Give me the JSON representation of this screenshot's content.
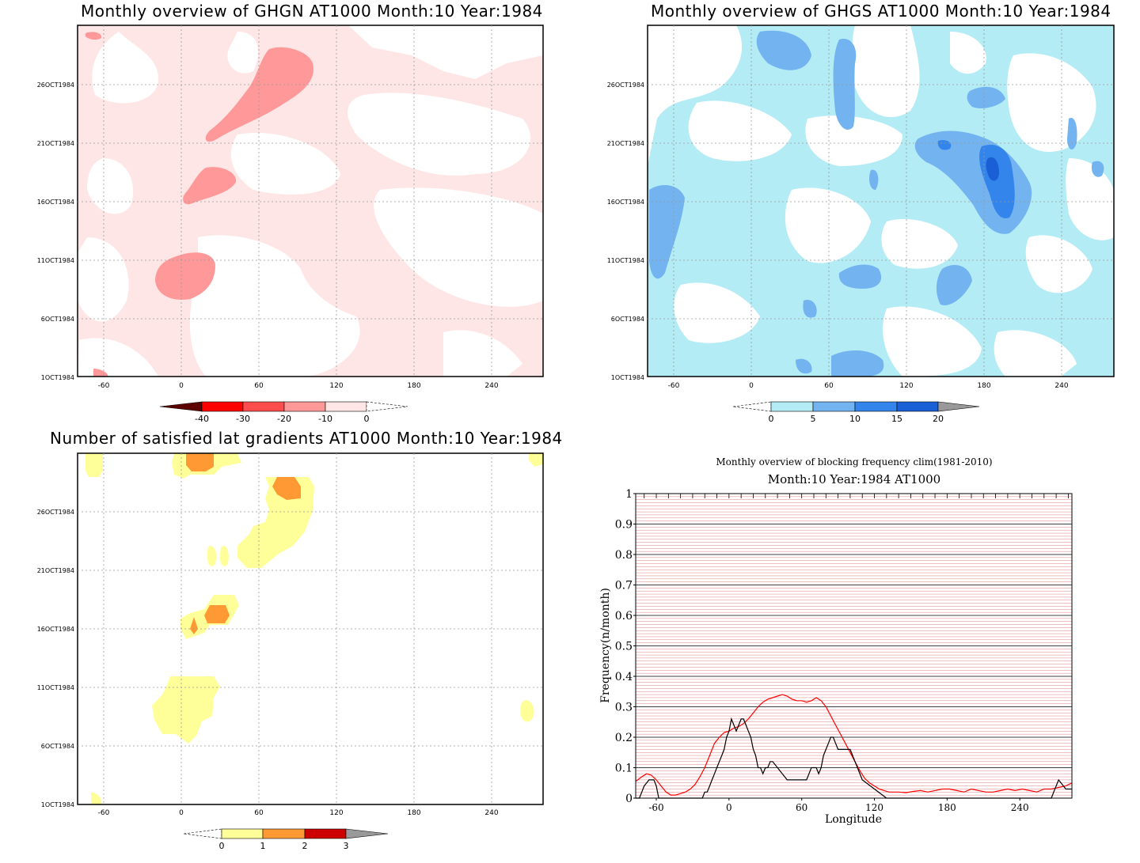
{
  "panels": {
    "ghgn": {
      "title": "Monthly overview of GHGN AT1000 Month:10 Year:1984",
      "colorbar": {
        "labels": [
          "-40",
          "-30",
          "-20",
          "-10",
          "0"
        ],
        "colors": [
          "#5c0000",
          "#ff0000",
          "#ff4d4d",
          "#ff9999",
          "#ffe6e6"
        ]
      }
    },
    "ghgs": {
      "title": "Monthly overview of GHGS AT1000 Month:10 Year:1984",
      "colorbar": {
        "labels": [
          "0",
          "5",
          "10",
          "15",
          "20"
        ],
        "colors": [
          "#b3ecf5",
          "#73b3f0",
          "#3385eb",
          "#1a5fd6",
          "#999999"
        ]
      }
    },
    "gradients": {
      "title": "Number of satisfied lat gradients AT1000 Month:10 Year:1984",
      "colorbar": {
        "labels": [
          "0",
          "1",
          "2",
          "3"
        ],
        "colors": [
          "#ffff99",
          "#ff9933",
          "#cc0000",
          "#999999"
        ]
      }
    }
  },
  "map_axes": {
    "x_ticks": [
      "-60",
      "0",
      "60",
      "120",
      "180",
      "240"
    ],
    "y_ticks": [
      "1OCT1984",
      "6OCT1984",
      "11OCT1984",
      "16OCT1984",
      "21OCT1984",
      "26OCT1984"
    ]
  },
  "chart_data": [
    {
      "type": "heatmap",
      "title": "Monthly overview of GHGN AT1000 Month:10 Year:1984",
      "x_ticks": [
        -60,
        0,
        60,
        120,
        180,
        240
      ],
      "y_ticks": [
        "1OCT1984",
        "6OCT1984",
        "11OCT1984",
        "16OCT1984",
        "21OCT1984",
        "26OCT1984"
      ],
      "color_levels": [
        -40,
        -30,
        -20,
        -10,
        0
      ],
      "xlim": [
        -77,
        283
      ]
    },
    {
      "type": "heatmap",
      "title": "Monthly overview of GHGS AT1000 Month:10 Year:1984",
      "x_ticks": [
        -60,
        0,
        60,
        120,
        180,
        240
      ],
      "y_ticks": [
        "1OCT1984",
        "6OCT1984",
        "11OCT1984",
        "16OCT1984",
        "21OCT1984",
        "26OCT1984"
      ],
      "color_levels": [
        0,
        5,
        10,
        15,
        20
      ],
      "xlim": [
        -77,
        283
      ]
    },
    {
      "type": "heatmap",
      "title": "Number of satisfied lat gradients AT1000 Month:10 Year:1984",
      "x_ticks": [
        -60,
        0,
        60,
        120,
        180,
        240
      ],
      "y_ticks": [
        "1OCT1984",
        "6OCT1984",
        "11OCT1984",
        "16OCT1984",
        "21OCT1984",
        "26OCT1984"
      ],
      "color_levels": [
        0,
        1,
        2,
        3
      ],
      "xlim": [
        -77,
        283
      ]
    },
    {
      "type": "line",
      "title": "Monthly overview of blocking frequency clim(1981-2010)",
      "subtitle": "Month:10 Year:1984  AT1000",
      "xlabel": "Longitude",
      "ylabel": "Frequency(n/month)",
      "xlim": [
        -77,
        283
      ],
      "ylim": [
        0,
        1
      ],
      "x_ticks": [
        -60,
        0,
        60,
        120,
        180,
        240
      ],
      "y_ticks": [
        "0",
        "0.1",
        "0.2",
        "0.3",
        "0.4",
        "0.5",
        "0.6",
        "0.7",
        "0.8",
        "0.9",
        "1"
      ],
      "series": [
        {
          "color": "#ff0000",
          "x": [
            -77,
            -72,
            -68,
            -64,
            -60,
            -56,
            -52,
            -48,
            -44,
            -40,
            -36,
            -32,
            -28,
            -24,
            -20,
            -16,
            -12,
            -8,
            -4,
            0,
            4,
            8,
            12,
            16,
            20,
            24,
            28,
            32,
            36,
            40,
            44,
            48,
            52,
            56,
            60,
            64,
            68,
            72,
            76,
            80,
            84,
            88,
            92,
            96,
            100,
            104,
            108,
            112,
            116,
            120,
            124,
            128,
            132,
            136,
            140,
            146,
            152,
            158,
            164,
            170,
            176,
            182,
            188,
            194,
            200,
            206,
            212,
            218,
            224,
            230,
            236,
            242,
            248,
            254,
            260,
            266,
            272,
            278,
            283
          ],
          "y": [
            0.055,
            0.07,
            0.08,
            0.075,
            0.06,
            0.04,
            0.02,
            0.01,
            0.01,
            0.015,
            0.02,
            0.03,
            0.045,
            0.07,
            0.1,
            0.14,
            0.18,
            0.2,
            0.215,
            0.22,
            0.23,
            0.235,
            0.245,
            0.26,
            0.28,
            0.3,
            0.315,
            0.325,
            0.33,
            0.335,
            0.34,
            0.335,
            0.325,
            0.32,
            0.32,
            0.315,
            0.32,
            0.33,
            0.32,
            0.3,
            0.27,
            0.24,
            0.21,
            0.18,
            0.15,
            0.12,
            0.09,
            0.065,
            0.05,
            0.04,
            0.03,
            0.025,
            0.02,
            0.02,
            0.02,
            0.018,
            0.022,
            0.025,
            0.02,
            0.025,
            0.03,
            0.03,
            0.025,
            0.02,
            0.03,
            0.025,
            0.02,
            0.02,
            0.025,
            0.03,
            0.025,
            0.03,
            0.025,
            0.02,
            0.03,
            0.03,
            0.035,
            0.04,
            0.05
          ]
        },
        {
          "color": "#000000",
          "x": [
            -77,
            -74,
            -72,
            -70,
            -68,
            -66,
            -64,
            -62,
            -60,
            -58,
            -56,
            -50,
            -40,
            -30,
            -24,
            -22,
            -20,
            -18,
            -16,
            -14,
            -12,
            -10,
            -8,
            -6,
            -4,
            -2,
            0,
            2,
            4,
            6,
            8,
            10,
            12,
            14,
            16,
            18,
            20,
            22,
            24,
            26,
            28,
            30,
            32,
            34,
            36,
            40,
            44,
            48,
            50,
            52,
            54,
            56,
            58,
            60,
            62,
            64,
            66,
            68,
            70,
            72,
            74,
            76,
            78,
            80,
            82,
            84,
            86,
            88,
            90,
            92,
            94,
            96,
            98,
            100,
            102,
            104,
            106,
            110,
            130,
            160,
            200,
            240,
            260,
            266,
            268,
            270,
            272,
            274,
            276,
            278,
            283
          ],
          "y": [
            0,
            0,
            0.02,
            0.04,
            0.05,
            0.06,
            0.06,
            0.06,
            0.04,
            0.0,
            0.0,
            0.0,
            0.0,
            0.0,
            0.0,
            0.0,
            0.02,
            0.02,
            0.04,
            0.06,
            0.08,
            0.1,
            0.12,
            0.14,
            0.16,
            0.2,
            0.22,
            0.26,
            0.24,
            0.22,
            0.24,
            0.26,
            0.26,
            0.24,
            0.22,
            0.2,
            0.16,
            0.14,
            0.1,
            0.1,
            0.08,
            0.1,
            0.1,
            0.12,
            0.12,
            0.1,
            0.08,
            0.06,
            0.06,
            0.06,
            0.06,
            0.06,
            0.06,
            0.06,
            0.06,
            0.06,
            0.08,
            0.1,
            0.1,
            0.1,
            0.08,
            0.1,
            0.14,
            0.16,
            0.18,
            0.2,
            0.2,
            0.18,
            0.16,
            0.16,
            0.16,
            0.16,
            0.16,
            0.16,
            0.14,
            0.12,
            0.1,
            0.06,
            0.0,
            0.0,
            0.0,
            0.0,
            0.0,
            0.0,
            0.02,
            0.04,
            0.06,
            0.05,
            0.04,
            0.03,
            0.03
          ]
        }
      ]
    }
  ]
}
